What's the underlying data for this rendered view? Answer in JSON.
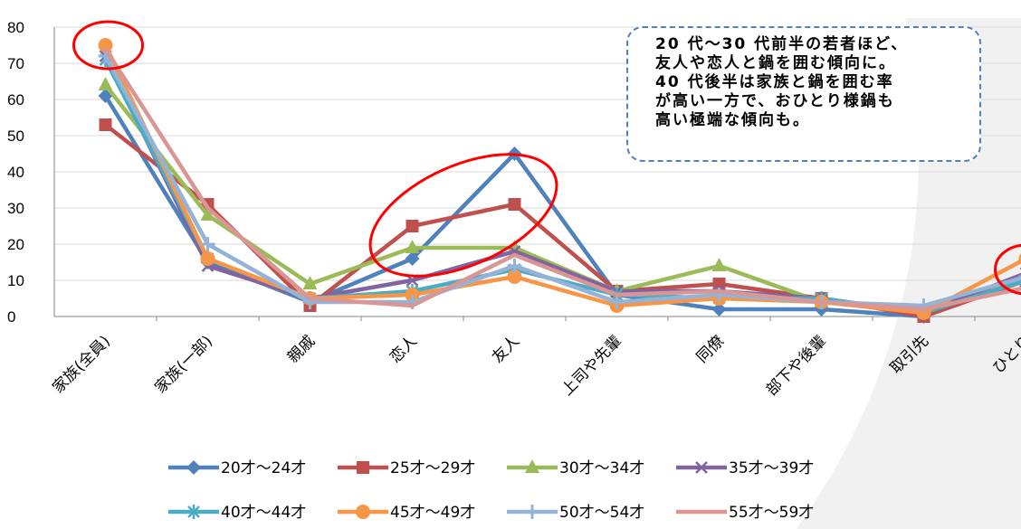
{
  "chart_data": {
    "type": "line",
    "ylim": [
      0,
      80
    ],
    "yticks": [
      0,
      10,
      20,
      30,
      40,
      50,
      60,
      70,
      80
    ],
    "grid": true,
    "legend_position": "bottom",
    "categories": [
      "家族(全員)",
      "家族(一部)",
      "親戚",
      "恋人",
      "友人",
      "上司や先輩",
      "同僚",
      "部下や後輩",
      "取引先",
      "ひとり"
    ],
    "series": [
      {
        "name": "20才～24才",
        "color": "#4f81bd",
        "marker": "diamond",
        "values": [
          61,
          15,
          4,
          16,
          45,
          6,
          2,
          2,
          0,
          11
        ]
      },
      {
        "name": "25才～29才",
        "color": "#c0504d",
        "marker": "square",
        "values": [
          53,
          31,
          3,
          25,
          31,
          7,
          9,
          5,
          0,
          10
        ]
      },
      {
        "name": "30才～34才",
        "color": "#9bbb59",
        "marker": "triangle",
        "values": [
          64,
          28,
          9,
          19,
          19,
          7,
          14,
          4,
          2,
          11
        ]
      },
      {
        "name": "35才～39才",
        "color": "#8064a2",
        "marker": "x",
        "values": [
          72,
          14,
          5,
          10,
          18,
          7,
          7,
          5,
          1,
          12
        ]
      },
      {
        "name": "40才～44才",
        "color": "#4bacc6",
        "marker": "asterisk",
        "values": [
          71,
          16,
          5,
          7,
          13,
          6,
          5,
          5,
          1,
          10
        ]
      },
      {
        "name": "45才～49才",
        "color": "#f79646",
        "marker": "circle",
        "values": [
          75,
          16,
          5,
          6,
          11,
          3,
          5,
          4,
          1,
          16
        ]
      },
      {
        "name": "50才～54才",
        "color": "#95b3d7",
        "marker": "plus",
        "values": [
          72,
          20,
          4,
          4,
          14,
          4,
          6,
          4,
          3,
          11
        ]
      },
      {
        "name": "55才～59才",
        "color": "#d99694",
        "marker": "none",
        "values": [
          74,
          30,
          5,
          3,
          17,
          6,
          7,
          4,
          2,
          8
        ]
      }
    ],
    "annotation": {
      "lines": [
        "20 代～30 代前半の若者ほど、",
        "友人や恋人と鍋を囲む傾向に。",
        "40 代後半は家族と鍋を囲む率",
        "が高い一方で、おひとり様鍋も",
        "高い極端な傾向も。"
      ]
    },
    "highlight_color": "#ff0000"
  }
}
